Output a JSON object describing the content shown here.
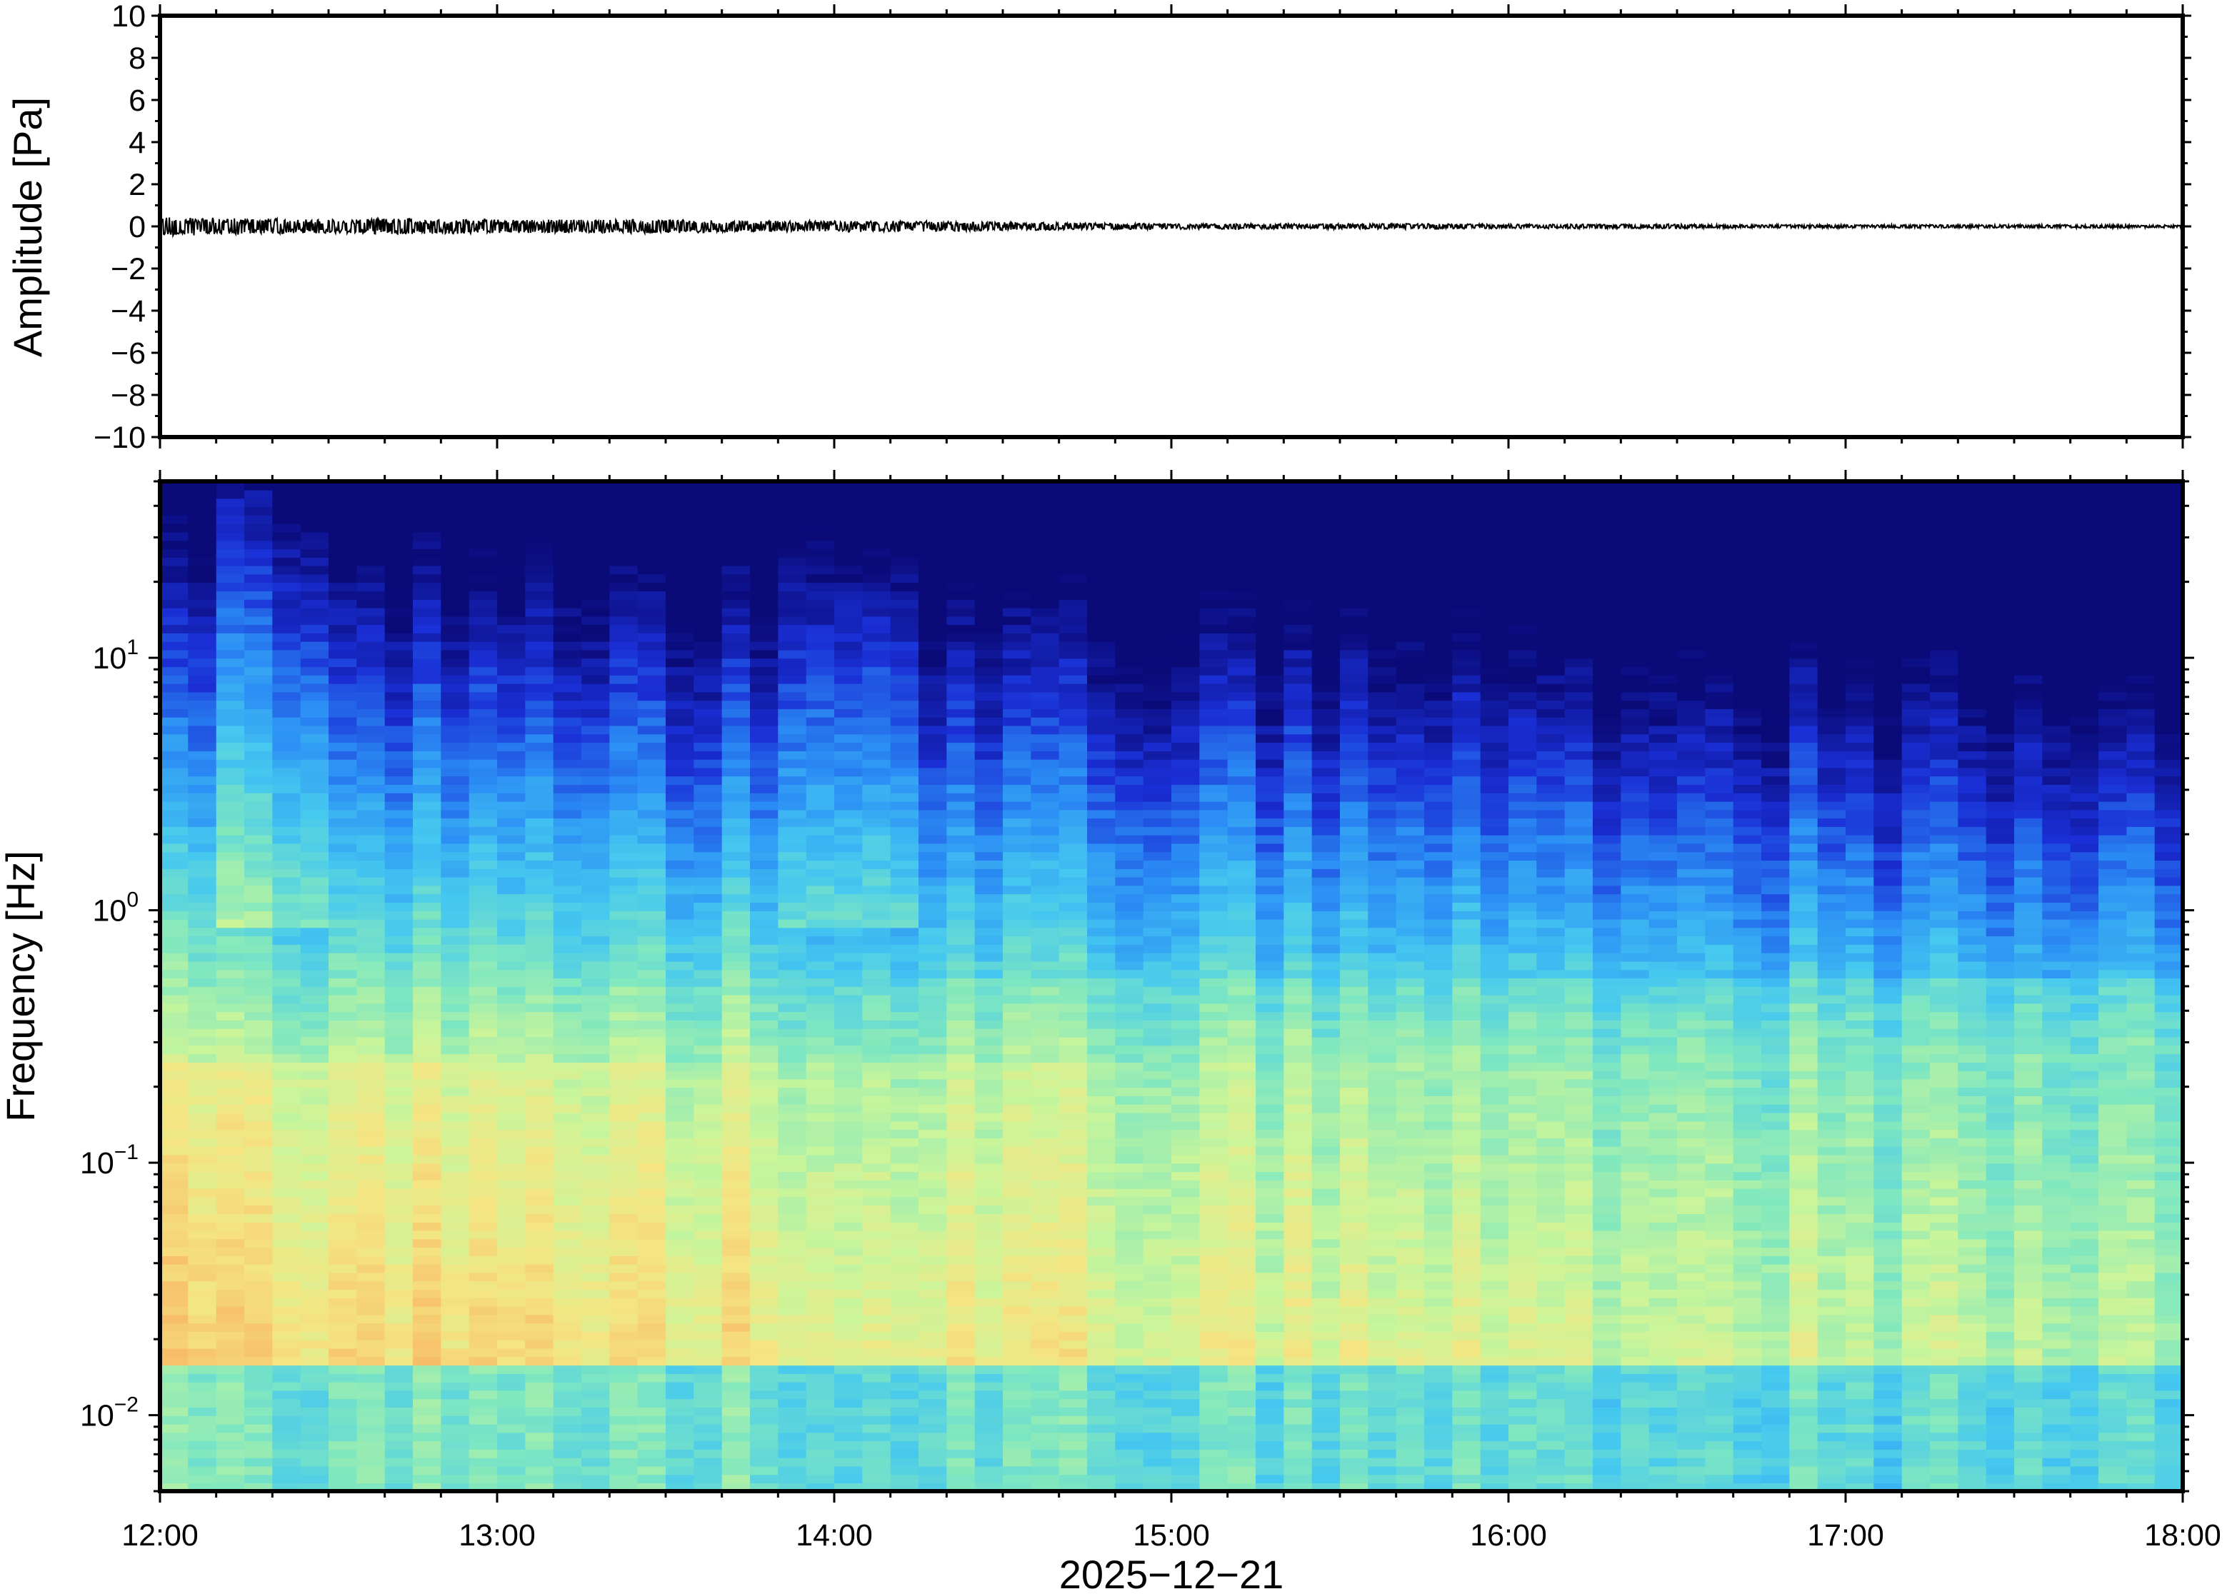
{
  "chart_data": [
    {
      "type": "line",
      "panel": "waveform",
      "ylabel": "Amplitude [Pa]",
      "ylim": [
        -10,
        10
      ],
      "yticks": [
        10,
        8,
        6,
        4,
        2,
        0,
        -2,
        -4,
        -6,
        -8,
        -10
      ],
      "ytick_labels": [
        "10",
        "8",
        "6",
        "4",
        "2",
        "0",
        "−2",
        "−4",
        "−6",
        "−8",
        "−10"
      ],
      "xlim": [
        "12:00",
        "18:00"
      ],
      "series": [
        {
          "color": "#000000",
          "x_hours": [
            12.0,
            12.25,
            12.5,
            12.75,
            13.0,
            13.25,
            13.5,
            13.75,
            14.0,
            14.25,
            14.5,
            14.75,
            15.0,
            15.25,
            15.5,
            15.75,
            16.0,
            16.25,
            16.5,
            16.75,
            17.0,
            17.25,
            17.5,
            17.75,
            18.0
          ],
          "envelope": [
            0.35,
            0.3,
            0.25,
            0.3,
            0.25,
            0.25,
            0.25,
            0.2,
            0.2,
            0.2,
            0.15,
            0.12,
            0.1,
            0.1,
            0.1,
            0.1,
            0.08,
            0.08,
            0.08,
            0.06,
            0.06,
            0.06,
            0.06,
            0.06,
            0.05
          ]
        }
      ]
    },
    {
      "type": "heatmap",
      "panel": "spectrogram",
      "ylabel": "Frequency [Hz]",
      "yscale": "log",
      "ylim": [
        0.005,
        50
      ],
      "yticks": [
        {
          "base": "10",
          "exp": "1"
        },
        {
          "base": "10",
          "exp": "0"
        },
        {
          "base": "10",
          "exp": "−1"
        },
        {
          "base": "10",
          "exp": "−2"
        }
      ],
      "xlabel": "2025−12−21",
      "xtick_labels": [
        "12:00",
        "13:00",
        "14:00",
        "15:00",
        "16:00",
        "17:00",
        "18:00"
      ],
      "colormap": [
        "#0a0a78",
        "#1a2fd6",
        "#2b8ef5",
        "#45c8f0",
        "#7fe7c0",
        "#c9f59a",
        "#f4e582",
        "#f8b864",
        "#f58a4c"
      ]
    }
  ]
}
